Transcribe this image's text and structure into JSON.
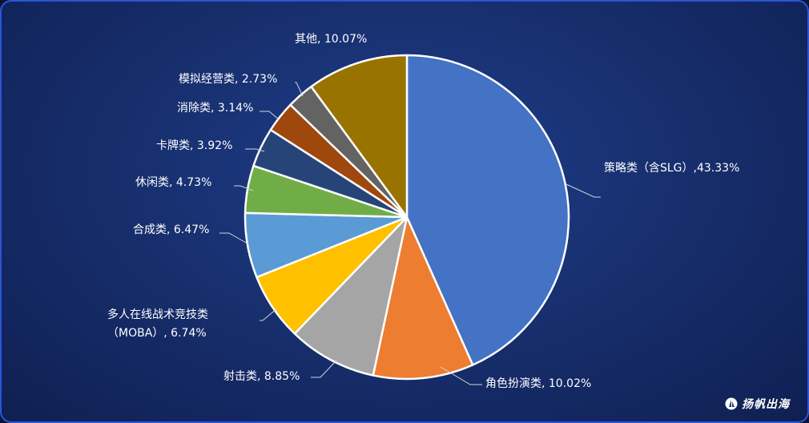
{
  "chart_data": {
    "type": "pie",
    "title": "",
    "slices": [
      {
        "label": "策略类（含SLG）,43.33%",
        "value": 43.33,
        "color": "#4472C4"
      },
      {
        "label": "角色扮演类, 10.02%",
        "value": 10.02,
        "color": "#ED7D31"
      },
      {
        "label": "射击类, 8.85%",
        "value": 8.85,
        "color": "#A5A5A5"
      },
      {
        "label": [
          "多人在线战术竞技类",
          "（MOBA）, 6.74%"
        ],
        "value": 6.74,
        "color": "#FFC000"
      },
      {
        "label": "合成类, 6.47%",
        "value": 6.47,
        "color": "#5B9BD5"
      },
      {
        "label": "休闲类, 4.73%",
        "value": 4.73,
        "color": "#70AD47"
      },
      {
        "label": "卡牌类, 3.92%",
        "value": 3.92,
        "color": "#264478"
      },
      {
        "label": "消除类, 3.14%",
        "value": 3.14,
        "color": "#9E480E"
      },
      {
        "label": "模拟经营类, 2.73%",
        "value": 2.73,
        "color": "#636363"
      },
      {
        "label": "其他, 10.07%",
        "value": 10.07,
        "color": "#997300"
      }
    ],
    "start_angle_deg": 0,
    "direction": "clockwise",
    "slice_border_color": "#ffffff",
    "leader_line_color": "#d0d4dc",
    "label_color": "#ffffff"
  },
  "brand": {
    "name": "扬帆出海"
  }
}
